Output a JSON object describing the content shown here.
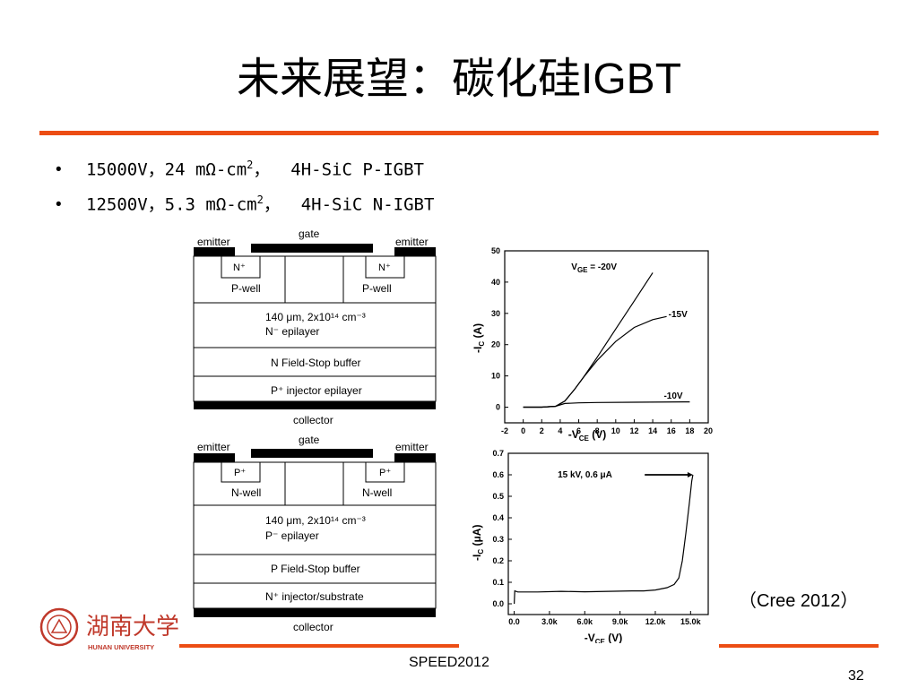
{
  "title": {
    "cjk": "未来展望：碳化硅",
    "latin": "IGBT"
  },
  "bullets": [
    {
      "text": "15000V，24 mΩ-cm",
      "sup": "2",
      "tail": "，  4H-SiC P-IGBT"
    },
    {
      "text": "12500V，5.3 mΩ-cm",
      "sup": "2",
      "tail": "，  4H-SiC N-IGBT"
    }
  ],
  "device_top": {
    "emitter_left": "emitter",
    "gate": "gate",
    "emitter_right": "emitter",
    "contact_left": "N⁺",
    "contact_right": "N⁺",
    "well_left": "P-well",
    "well_right": "P-well",
    "drift_line1": "140 μm, 2x10¹⁴ cm⁻³",
    "drift_line2": "N⁻ epilayer",
    "buffer": "N Field-Stop buffer",
    "injector": "P⁺ injector epilayer",
    "collector": "collector"
  },
  "device_bottom": {
    "emitter_left": "emitter",
    "gate": "gate",
    "emitter_right": "emitter",
    "contact_left": "P⁺",
    "contact_right": "P⁺",
    "well_left": "N-well",
    "well_right": "N-well",
    "drift_line1": "140 μm, 2x10¹⁴ cm⁻³",
    "drift_line2": "P⁻ epilayer",
    "buffer": "P Field-Stop buffer",
    "injector": "N⁺ injector/substrate",
    "collector": "collector"
  },
  "chart_data": [
    {
      "type": "line",
      "xlabel": "-V_CE (V)",
      "ylabel": "-I_C (A)",
      "xlim": [
        -2,
        20
      ],
      "ylim": [
        -5,
        50
      ],
      "xticks": [
        "-2",
        "0",
        "2",
        "4",
        "6",
        "8",
        "10",
        "12",
        "14",
        "16",
        "18",
        "20"
      ],
      "yticks": [
        "0",
        "10",
        "20",
        "30",
        "40",
        "50"
      ],
      "series": [
        {
          "name": "V_GE = -20V",
          "x": [
            0,
            2,
            3.5,
            4.5,
            5.5,
            6.5,
            8,
            10,
            12,
            14
          ],
          "y": [
            0,
            0,
            0.3,
            2,
            5.5,
            9.5,
            16,
            25,
            34,
            43
          ]
        },
        {
          "name": "-15V",
          "x": [
            0,
            2,
            3.5,
            4.5,
            5.5,
            6.5,
            8,
            10,
            12,
            14,
            15.5
          ],
          "y": [
            0,
            0,
            0.3,
            2,
            5.5,
            9.5,
            15,
            21,
            25.5,
            28,
            29
          ]
        },
        {
          "name": "-10V",
          "x": [
            0,
            2,
            3.5,
            4.5,
            6,
            8,
            12,
            18
          ],
          "y": [
            0,
            0,
            0.3,
            1.2,
            1.4,
            1.5,
            1.6,
            1.7
          ]
        }
      ]
    },
    {
      "type": "line",
      "xlabel": "-V_CE (V)",
      "ylabel": "-I_C (μA)",
      "xlim": [
        -0.5,
        16.5
      ],
      "ylim": [
        -0.05,
        0.7
      ],
      "xticks": [
        "0.0",
        "3.0k",
        "6.0k",
        "9.0k",
        "12.0k",
        "15.0k"
      ],
      "yticks": [
        "0.0",
        "0.1",
        "0.2",
        "0.3",
        "0.4",
        "0.5",
        "0.6",
        "0.7"
      ],
      "annotation": "15 kV, 0.6 μA",
      "series": [
        {
          "x": [
            0,
            0.05,
            0.3,
            2,
            4,
            6,
            8,
            10,
            11,
            12,
            13,
            13.6,
            14,
            14.3,
            14.6,
            14.9,
            15.1,
            15.2
          ],
          "y": [
            0.0,
            0.06,
            0.055,
            0.055,
            0.058,
            0.056,
            0.058,
            0.06,
            0.06,
            0.064,
            0.075,
            0.09,
            0.12,
            0.2,
            0.33,
            0.47,
            0.57,
            0.6
          ]
        }
      ]
    }
  ],
  "citation": "（Cree 2012）",
  "logo_text": {
    "cn": "湖南大学",
    "en": "HUNAN UNIVERSITY"
  },
  "footer": "SPEED2012",
  "page_number": "32",
  "colors": {
    "accent": "#ec4d14"
  }
}
